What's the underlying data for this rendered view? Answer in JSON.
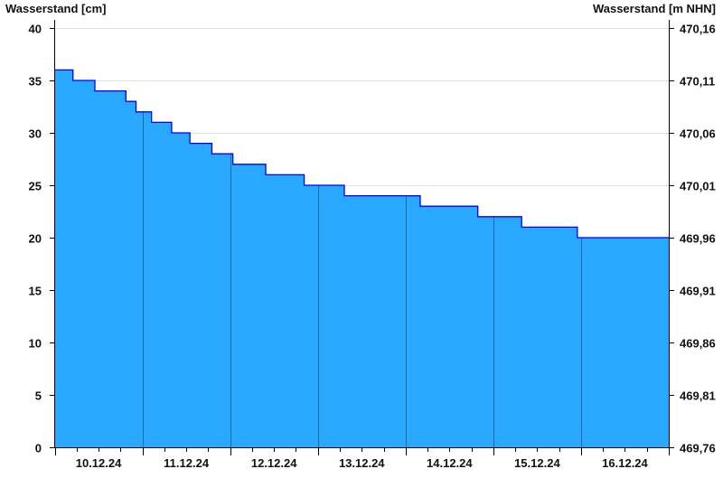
{
  "chart_data": {
    "type": "area",
    "step": true,
    "ylabel_left": "Wasserstand [cm]",
    "ylabel_right": "Wasserstand [m NHN]",
    "ylim": [
      0,
      40
    ],
    "yticks_left": [
      "0",
      "5",
      "10",
      "15",
      "20",
      "25",
      "30",
      "35",
      "40"
    ],
    "yticks_right": [
      "469,76",
      "469,81",
      "469,86",
      "469,91",
      "469,96",
      "470,01",
      "470,06",
      "470,11",
      "470,16"
    ],
    "xlim": [
      "10.12.24 00:00",
      "17.12.24 00:00"
    ],
    "xtick_labels": [
      "10.12.24",
      "11.12.24",
      "12.12.24",
      "13.12.24",
      "14.12.24",
      "15.12.24",
      "16.12.24"
    ],
    "grid": true,
    "fill_color": "#29A8FF",
    "line_color": "#0000FF",
    "series": [
      {
        "x": [
          "10.12.24 00:00",
          "10.12.24 05:00",
          "10.12.24 11:00",
          "10.12.24 19:30",
          "10.12.24 22:15",
          "11.12.24 02:30",
          "11.12.24 08:00",
          "11.12.24 13:00",
          "11.12.24 19:00",
          "12.12.24 00:45",
          "12.12.24 09:45",
          "12.12.24 20:15",
          "13.12.24 07:15",
          "14.12.24 04:00",
          "14.12.24 19:45",
          "15.12.24 07:45",
          "15.12.24 23:00"
        ],
        "values": [
          36,
          35,
          34,
          33,
          32,
          31,
          30,
          29,
          28,
          27,
          26,
          25,
          24,
          23,
          22,
          21,
          20
        ]
      }
    ]
  }
}
